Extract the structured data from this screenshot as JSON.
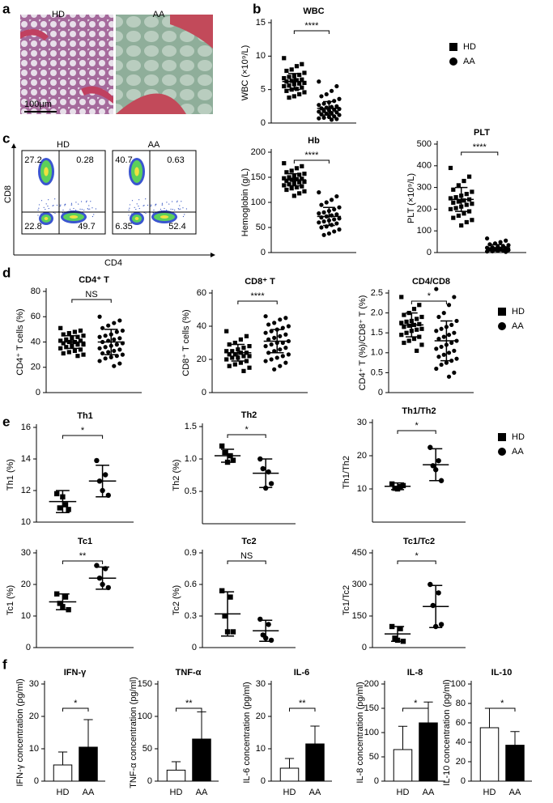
{
  "labels": [
    "a",
    "b",
    "c",
    "d",
    "e",
    "f"
  ],
  "histology": {
    "groups": [
      "HD",
      "AA"
    ],
    "scale": "100μm"
  },
  "flow": {
    "xlabel": "CD4",
    "ylabel": "CD8",
    "plots": [
      {
        "name": "HD",
        "quadrants": [
          27.2,
          0.28,
          22.8,
          49.7
        ]
      },
      {
        "name": "AA",
        "quadrants": [
          40.7,
          0.63,
          6.35,
          52.4
        ]
      }
    ]
  },
  "chart_data": [
    {
      "type": "dot",
      "title": "WBC",
      "ylabel": "WBC (×10⁹/L)",
      "ylim": [
        0,
        15
      ],
      "yticks": [
        0,
        5,
        10,
        15
      ],
      "significance": "****",
      "legend": true,
      "series": [
        {
          "name": "HD",
          "marker": "square",
          "mean": 6.2,
          "sd": 1.2,
          "values": [
            9.7,
            8.8,
            8.5,
            8.0,
            7.8,
            7.5,
            7.2,
            7.0,
            6.9,
            6.7,
            6.5,
            6.4,
            6.3,
            6.2,
            6.0,
            5.9,
            5.8,
            5.6,
            5.5,
            5.3,
            5.1,
            5.0,
            4.8,
            4.6,
            4.3,
            4.0,
            3.8
          ]
        },
        {
          "name": "AA",
          "marker": "circle",
          "mean": 2.2,
          "sd": 1.0,
          "values": [
            6.2,
            5.5,
            4.8,
            4.3,
            4.0,
            3.6,
            3.3,
            3.1,
            2.9,
            2.7,
            2.5,
            2.4,
            2.3,
            2.2,
            2.1,
            2.0,
            1.9,
            1.8,
            1.7,
            1.6,
            1.5,
            1.4,
            1.3,
            1.2,
            1.0,
            0.9,
            0.8,
            0.7,
            0.6,
            0.5
          ]
        }
      ]
    },
    {
      "type": "dot",
      "title": "Hb",
      "ylabel": "Hemoglobin (g/L)",
      "ylim": [
        0,
        200
      ],
      "yticks": [
        0,
        50,
        100,
        150,
        200
      ],
      "significance": "****",
      "series": [
        {
          "name": "HD",
          "marker": "square",
          "mean": 145,
          "sd": 12,
          "values": [
            178,
            172,
            168,
            163,
            160,
            157,
            155,
            152,
            150,
            148,
            147,
            146,
            145,
            143,
            141,
            140,
            138,
            136,
            134,
            132,
            130,
            128,
            125,
            122,
            118,
            113
          ]
        },
        {
          "name": "AA",
          "marker": "circle",
          "mean": 72,
          "sd": 18,
          "values": [
            120,
            112,
            105,
            100,
            95,
            90,
            86,
            83,
            80,
            78,
            76,
            74,
            72,
            70,
            68,
            66,
            64,
            62,
            60,
            58,
            55,
            52,
            50,
            46,
            42,
            38,
            35
          ]
        }
      ]
    },
    {
      "type": "dot",
      "title": "PLT",
      "ylabel": "PLT (×10⁹/L)",
      "ylim": [
        0,
        500
      ],
      "yticks": [
        0,
        100,
        200,
        300,
        400,
        500
      ],
      "significance": "****",
      "series": [
        {
          "name": "HD",
          "marker": "square",
          "mean": 245,
          "sd": 55,
          "values": [
            390,
            350,
            330,
            310,
            290,
            280,
            270,
            262,
            255,
            250,
            245,
            240,
            235,
            230,
            225,
            220,
            212,
            205,
            200,
            190,
            180,
            170,
            160,
            150,
            140,
            125
          ]
        },
        {
          "name": "AA",
          "marker": "circle",
          "mean": 22,
          "sd": 15,
          "values": [
            65,
            55,
            48,
            42,
            38,
            34,
            30,
            27,
            24,
            22,
            20,
            18,
            16,
            14,
            12,
            10,
            8,
            6,
            5,
            3
          ]
        }
      ]
    },
    {
      "type": "dot",
      "title": "CD4⁺ T",
      "ylabel": "CD4⁺ T cells (%)",
      "ylim": [
        0,
        80
      ],
      "yticks": [
        0,
        20,
        40,
        60,
        80
      ],
      "significance": "NS",
      "series": [
        {
          "name": "HD",
          "marker": "square",
          "mean": 40,
          "sd": 5,
          "values": [
            51,
            49,
            48,
            47,
            46,
            45,
            44,
            43,
            42,
            41,
            41,
            40,
            40,
            39,
            38,
            38,
            37,
            36,
            35,
            34,
            33,
            32,
            31,
            30,
            29
          ]
        },
        {
          "name": "AA",
          "marker": "circle",
          "mean": 40,
          "sd": 10,
          "values": [
            60,
            57,
            55,
            53,
            51,
            49,
            48,
            46,
            45,
            44,
            43,
            42,
            41,
            40,
            39,
            38,
            37,
            36,
            35,
            34,
            33,
            32,
            31,
            30,
            29,
            28,
            27,
            25,
            23,
            21
          ]
        }
      ]
    },
    {
      "type": "dot",
      "title": "CD8⁺ T",
      "ylabel": "CD8⁺ T cells (%)",
      "ylim": [
        0,
        60
      ],
      "yticks": [
        0,
        20,
        40,
        60
      ],
      "significance": "****",
      "series": [
        {
          "name": "HD",
          "marker": "square",
          "mean": 24,
          "sd": 5,
          "values": [
            37,
            34,
            32,
            30,
            29,
            28,
            27,
            26,
            25,
            25,
            24,
            24,
            23,
            23,
            22,
            22,
            21,
            21,
            20,
            19,
            18,
            17,
            16,
            15,
            13
          ]
        },
        {
          "name": "AA",
          "marker": "circle",
          "mean": 31,
          "sd": 7,
          "values": [
            46,
            45,
            44,
            42,
            41,
            40,
            39,
            38,
            37,
            36,
            35,
            34,
            33,
            32,
            31,
            30,
            30,
            29,
            28,
            27,
            26,
            25,
            24,
            23,
            22,
            21,
            20,
            19,
            18,
            16,
            14
          ]
        }
      ]
    },
    {
      "type": "dot",
      "title": "CD4/CD8",
      "ylabel": "CD4⁺ T (%)/CD8⁺ T (%)",
      "ylim": [
        0,
        2.5
      ],
      "yticks": [
        0,
        0.5,
        {
          "value": 1,
          "label": "1.0"
        },
        1.5,
        {
          "value": 2,
          "label": "2.0"
        },
        2.5
      ],
      "significance": "*",
      "legend": true,
      "series": [
        {
          "name": "HD",
          "marker": "square",
          "mean": 1.7,
          "sd": 0.3,
          "values": [
            2.4,
            2.2,
            2.1,
            2.0,
            1.95,
            1.9,
            1.85,
            1.8,
            1.78,
            1.75,
            1.72,
            1.7,
            1.68,
            1.65,
            1.6,
            1.58,
            1.55,
            1.5,
            1.45,
            1.4,
            1.35,
            1.3,
            1.25,
            1.2,
            1.05
          ]
        },
        {
          "name": "AA",
          "marker": "circle",
          "mean": 1.3,
          "sd": 0.5,
          "values": [
            2.6,
            2.4,
            2.2,
            2.0,
            1.9,
            1.8,
            1.7,
            1.65,
            1.6,
            1.55,
            1.5,
            1.45,
            1.4,
            1.35,
            1.3,
            1.25,
            1.2,
            1.15,
            1.1,
            1.05,
            1.0,
            0.95,
            0.9,
            0.85,
            0.8,
            0.75,
            0.7,
            0.6,
            0.5,
            0.4
          ]
        }
      ]
    },
    {
      "type": "dot",
      "title": "Th1",
      "ylabel": "Th1 (%)",
      "ylim": [
        10,
        16
      ],
      "yticks": [
        10,
        12,
        14,
        16
      ],
      "significance": "*",
      "series": [
        {
          "name": "HD",
          "marker": "square",
          "mean": 11.3,
          "sd": 0.7,
          "values": [
            11.8,
            11.1,
            10.9,
            10.8,
            11.6
          ]
        },
        {
          "name": "AA",
          "marker": "circle",
          "mean": 12.6,
          "sd": 1.0,
          "values": [
            13.9,
            13.0,
            12.6,
            11.7,
            12.0
          ]
        }
      ]
    },
    {
      "type": "dot",
      "title": "Th2",
      "ylabel": "Th2 (%)",
      "ylim": [
        0,
        1.5
      ],
      "yticks": [
        0.5,
        {
          "value": 1,
          "label": "1.0"
        },
        1.5
      ],
      "significance": "*",
      "series": [
        {
          "name": "HD",
          "marker": "square",
          "mean": 1.05,
          "sd": 0.1,
          "values": [
            1.2,
            1.05,
            1.1,
            0.98,
            0.95
          ]
        },
        {
          "name": "AA",
          "marker": "circle",
          "mean": 0.78,
          "sd": 0.22,
          "values": [
            1.0,
            0.8,
            0.85,
            0.62,
            0.55
          ]
        }
      ]
    },
    {
      "type": "dot",
      "title": "Th1/Th2",
      "ylabel": "Th1/Th2",
      "ylim": [
        0,
        30
      ],
      "yticks": [
        10,
        20,
        30
      ],
      "significance": "*",
      "legend": true,
      "series": [
        {
          "name": "HD",
          "marker": "square",
          "mean": 10.8,
          "sd": 1.0,
          "values": [
            11.5,
            10.7,
            10.2,
            11.0,
            10.0
          ]
        },
        {
          "name": "AA",
          "marker": "circle",
          "mean": 17.3,
          "sd": 4.8,
          "values": [
            22.5,
            18.5,
            17,
            12.5,
            15.8
          ]
        }
      ]
    },
    {
      "type": "dot",
      "title": "Tc1",
      "ylabel": "Tc1 (%)",
      "ylim": [
        0,
        30
      ],
      "yticks": [
        0,
        10,
        20,
        30
      ],
      "significance": "**",
      "series": [
        {
          "name": "HD",
          "marker": "square",
          "mean": 14.5,
          "sd": 2.5,
          "values": [
            17,
            16,
            14,
            12,
            13
          ]
        },
        {
          "name": "AA",
          "marker": "circle",
          "mean": 22,
          "sd": 3.5,
          "values": [
            26,
            25,
            22,
            19,
            20
          ]
        }
      ]
    },
    {
      "type": "dot",
      "title": "Tc2",
      "ylabel": "Tc2 (%)",
      "ylim": [
        0,
        0.9
      ],
      "yticks": [
        0,
        0.3,
        0.6,
        0.9
      ],
      "significance": "NS",
      "series": [
        {
          "name": "HD",
          "marker": "square",
          "mean": 0.32,
          "sd": 0.21,
          "values": [
            0.54,
            0.48,
            0.3,
            0.15,
            0.15
          ]
        },
        {
          "name": "AA",
          "marker": "circle",
          "mean": 0.16,
          "sd": 0.1,
          "values": [
            0.27,
            0.22,
            0.12,
            0.07,
            0.09
          ]
        }
      ]
    },
    {
      "type": "dot",
      "title": "Tc1/Tc2",
      "ylabel": "Tc1/Tc2",
      "ylim": [
        0,
        450
      ],
      "yticks": [
        0,
        150,
        300,
        450
      ],
      "significance": "*",
      "series": [
        {
          "name": "HD",
          "marker": "square",
          "mean": 65,
          "sd": 35,
          "values": [
            100,
            90,
            45,
            30,
            35
          ]
        },
        {
          "name": "AA",
          "marker": "circle",
          "mean": 195,
          "sd": 100,
          "values": [
            300,
            260,
            200,
            110,
            100
          ]
        }
      ]
    },
    {
      "type": "bar",
      "title": "IFN-γ",
      "ylabel": "IFN-γ concentration (pg/ml)",
      "ylim": [
        0,
        30
      ],
      "yticks": [
        0,
        10,
        20,
        30
      ],
      "significance": "*",
      "categories": [
        "HD",
        "AA"
      ],
      "values": [
        5,
        10.5
      ],
      "errors": [
        4,
        8.5
      ],
      "colors": [
        "#ffffff",
        "#000000"
      ]
    },
    {
      "type": "bar",
      "title": "TNF-α",
      "ylabel": "TNF-α concentration (pg/ml)",
      "ylim": [
        0,
        150
      ],
      "yticks": [
        0,
        50,
        100,
        150
      ],
      "significance": "**",
      "categories": [
        "HD",
        "AA"
      ],
      "values": [
        17,
        65
      ],
      "errors": [
        13,
        42
      ],
      "colors": [
        "#ffffff",
        "#000000"
      ]
    },
    {
      "type": "bar",
      "title": "IL-6",
      "ylabel": "IL-6 concentration (pg/ml)",
      "ylim": [
        0,
        30
      ],
      "yticks": [
        0,
        10,
        20,
        30
      ],
      "significance": "**",
      "categories": [
        "HD",
        "AA"
      ],
      "values": [
        4,
        11.5
      ],
      "errors": [
        3,
        5.5
      ],
      "colors": [
        "#ffffff",
        "#000000"
      ]
    },
    {
      "type": "bar",
      "title": "IL-8",
      "ylabel": "IL-8 concentration (pg/ml)",
      "ylim": [
        0,
        200
      ],
      "yticks": [
        0,
        50,
        100,
        150,
        200
      ],
      "significance": "*",
      "categories": [
        "HD",
        "AA"
      ],
      "values": [
        65,
        120
      ],
      "errors": [
        48,
        43
      ],
      "colors": [
        "#ffffff",
        "#000000"
      ]
    },
    {
      "type": "bar",
      "title": "IL-10",
      "ylabel": "IL-10 concentration (pg/ml)",
      "ylim": [
        0,
        100
      ],
      "yticks": [
        0,
        20,
        40,
        60,
        80,
        100
      ],
      "significance": "*",
      "categories": [
        "HD",
        "AA"
      ],
      "values": [
        55,
        37
      ],
      "errors": [
        20,
        14
      ],
      "colors": [
        "#ffffff",
        "#000000"
      ]
    }
  ]
}
